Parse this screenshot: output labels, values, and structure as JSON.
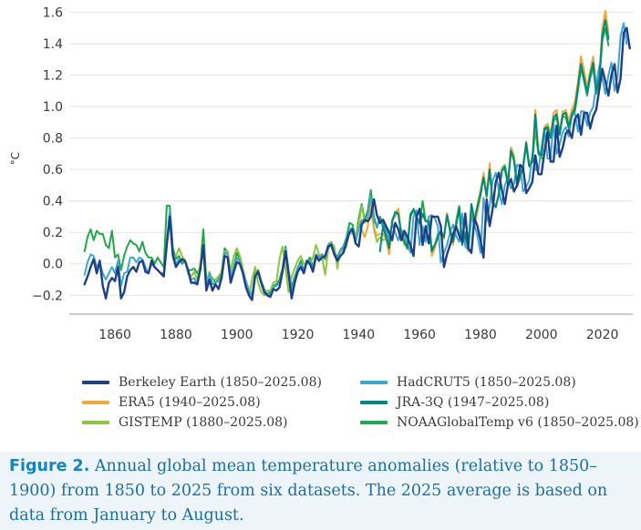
{
  "chart_data": {
    "type": "line",
    "title": "",
    "xlabel": "",
    "ylabel": "°C",
    "xlim": [
      1845,
      2030
    ],
    "ylim": [
      -0.32,
      1.62
    ],
    "xticks": [
      1860,
      1880,
      1900,
      1920,
      1940,
      1960,
      1980,
      2000,
      2020
    ],
    "xtick_labels": [
      "1860",
      "1880",
      "1900",
      "1920",
      "1940",
      "1960",
      "1980",
      "2000",
      "2020"
    ],
    "yticks": [
      -0.2,
      0.0,
      0.2,
      0.4,
      0.6,
      0.8,
      1.0,
      1.2,
      1.4,
      1.6
    ],
    "ytick_labels": [
      "−0.2",
      "0.0",
      "0.2",
      "0.4",
      "0.6",
      "0.8",
      "1.0",
      "1.2",
      "1.4",
      "1.6"
    ],
    "grid": "horizontal",
    "x_start": 1850,
    "series": [
      {
        "name": "Berkeley Earth (1850–2025.08)",
        "color": "#1f3f86",
        "start": 1850,
        "values": [
          -0.13,
          -0.08,
          -0.02,
          0.03,
          -0.06,
          0.02,
          -0.14,
          -0.22,
          -0.12,
          -0.09,
          -0.11,
          -0.02,
          -0.22,
          -0.18,
          -0.08,
          -0.04,
          -0.02,
          -0.05,
          0.01,
          0.02,
          -0.05,
          -0.06,
          0.02,
          -0.02,
          -0.04,
          -0.06,
          -0.08,
          0.12,
          0.3,
          0.05,
          -0.02,
          0.01,
          0.03,
          0.02,
          -0.04,
          -0.12,
          -0.12,
          -0.13,
          -0.04,
          0.12,
          -0.17,
          -0.1,
          -0.17,
          -0.13,
          -0.16,
          -0.09,
          0.05,
          0.04,
          -0.12,
          -0.05,
          0.01,
          0.0,
          -0.06,
          -0.15,
          -0.2,
          -0.23,
          -0.08,
          -0.05,
          -0.12,
          -0.18,
          -0.2,
          -0.21,
          -0.16,
          -0.17,
          -0.15,
          -0.05,
          0.08,
          -0.07,
          -0.22,
          -0.12,
          -0.05,
          -0.02,
          -0.06,
          0.02,
          0.0,
          -0.05,
          0.05,
          0.02,
          0.04,
          0.05,
          0.11,
          0.12,
          0.06,
          0.02,
          0.05,
          0.07,
          0.14,
          0.2,
          0.22,
          0.13,
          0.11,
          0.25,
          0.28,
          0.27,
          0.3,
          0.41,
          0.31,
          0.26,
          0.28,
          0.24,
          0.2,
          0.15,
          0.26,
          0.22,
          0.15,
          0.21,
          0.17,
          0.12,
          0.05,
          0.3,
          0.35,
          0.12,
          0.24,
          0.13,
          0.3,
          0.3,
          0.3,
          0.24,
          -0.02,
          0.06,
          0.12,
          0.19,
          0.24,
          0.18,
          0.14,
          0.32,
          0.1,
          0.07,
          0.29,
          0.24,
          0.15,
          0.04,
          0.41,
          0.24,
          0.35,
          0.52,
          0.58,
          0.47,
          0.38,
          0.5,
          0.54,
          0.46,
          0.5,
          0.63,
          0.61,
          0.45,
          0.48,
          0.52,
          0.69,
          0.57,
          0.57,
          0.71,
          0.84,
          0.65,
          0.65,
          0.88,
          0.68,
          0.74,
          0.83,
          0.85,
          0.8,
          0.92,
          0.95,
          0.82,
          0.96,
          0.96,
          0.86,
          0.94,
          0.98,
          1.11,
          1.24,
          1.16,
          1.07,
          1.2,
          1.27,
          1.09,
          1.18,
          1.47,
          1.5,
          1.37
        ]
      },
      {
        "name": "ERA5 (1940–2025.08)",
        "color": "#f2a93b",
        "start": 1940,
        "values": [
          0.28,
          0.22,
          0.17,
          0.24,
          0.39,
          0.23,
          0.18,
          0.19,
          0.19,
          0.16,
          0.06,
          0.27,
          0.32,
          0.35,
          0.19,
          0.15,
          0.09,
          0.32,
          0.34,
          0.3,
          0.27,
          0.31,
          0.28,
          0.28,
          0.05,
          0.1,
          0.17,
          0.2,
          0.16,
          0.32,
          0.2,
          0.12,
          0.24,
          0.35,
          0.13,
          0.17,
          0.08,
          0.36,
          0.24,
          0.33,
          0.43,
          0.58,
          0.42,
          0.64,
          0.4,
          0.37,
          0.45,
          0.6,
          0.62,
          0.52,
          0.74,
          0.67,
          0.51,
          0.55,
          0.63,
          0.78,
          0.64,
          0.67,
          0.98,
          0.72,
          0.71,
          0.87,
          0.88,
          0.82,
          0.96,
          0.98,
          0.83,
          0.96,
          0.98,
          0.91,
          0.98,
          1.03,
          1.16,
          1.32,
          1.23,
          1.12,
          1.23,
          1.32,
          1.12,
          1.2,
          1.5,
          1.61,
          1.47
        ]
      },
      {
        "name": "GISTEMP (1880–2025.08)",
        "color": "#8cc63f",
        "start": 1880,
        "values": [
          0.05,
          0.1,
          0.05,
          0.02,
          -0.05,
          -0.08,
          -0.05,
          -0.1,
          0.0,
          0.13,
          -0.13,
          -0.05,
          -0.1,
          -0.1,
          -0.08,
          -0.05,
          0.08,
          0.08,
          -0.05,
          0.05,
          0.1,
          0.05,
          -0.03,
          -0.12,
          -0.2,
          -0.1,
          -0.02,
          -0.12,
          -0.18,
          -0.2,
          -0.17,
          -0.17,
          -0.12,
          -0.11,
          0.03,
          0.11,
          -0.03,
          -0.18,
          -0.08,
          -0.03,
          0.02,
          0.05,
          0.0,
          0.0,
          0.0,
          0.04,
          0.12,
          0.06,
          0.04,
          -0.07,
          0.09,
          0.14,
          0.11,
          -0.03,
          0.09,
          0.07,
          0.11,
          0.2,
          0.19,
          0.18,
          0.25,
          0.37,
          0.26,
          0.29,
          0.36,
          0.22,
          0.14,
          0.17,
          0.15,
          0.16,
          0.09,
          0.28,
          0.32,
          0.35,
          0.19,
          0.12,
          0.11,
          0.32,
          0.34,
          0.29,
          0.25,
          0.31,
          0.27,
          0.28,
          0.09,
          0.12,
          0.18,
          0.21,
          0.17,
          0.3,
          0.22,
          0.14,
          0.25,
          0.37,
          0.13,
          0.19,
          0.08,
          0.38,
          0.28,
          0.38,
          0.47,
          0.57,
          0.43,
          0.6,
          0.38,
          0.36,
          0.45,
          0.61,
          0.63,
          0.53,
          0.74,
          0.69,
          0.51,
          0.56,
          0.62,
          0.77,
          0.64,
          0.67,
          0.89,
          0.72,
          0.68,
          0.87,
          0.89,
          0.83,
          0.93,
          0.96,
          0.84,
          0.97,
          0.95,
          0.88,
          0.98,
          1.01,
          1.12,
          1.29,
          1.2,
          1.1,
          1.21,
          1.29,
          1.1,
          1.18,
          1.47,
          1.57,
          1.45
        ]
      },
      {
        "name": "HadCRUT5 (1850–2025.08)",
        "color": "#3aa7d4",
        "start": 1850,
        "values": [
          -0.07,
          0.01,
          0.06,
          0.05,
          -0.02,
          0.01,
          -0.06,
          -0.1,
          -0.06,
          -0.02,
          -0.06,
          0.02,
          -0.14,
          -0.06,
          -0.05,
          0.04,
          0.04,
          0.01,
          0.04,
          0.03,
          -0.02,
          -0.06,
          0.0,
          -0.02,
          -0.04,
          -0.06,
          -0.06,
          0.14,
          0.34,
          0.06,
          0.0,
          0.03,
          0.02,
          0.02,
          -0.06,
          -0.1,
          -0.09,
          -0.13,
          -0.04,
          0.1,
          -0.15,
          -0.06,
          -0.13,
          -0.12,
          -0.11,
          -0.08,
          0.07,
          0.06,
          -0.08,
          -0.03,
          0.04,
          0.01,
          -0.05,
          -0.11,
          -0.17,
          -0.2,
          -0.07,
          -0.05,
          -0.12,
          -0.16,
          -0.2,
          -0.19,
          -0.15,
          -0.14,
          -0.12,
          -0.04,
          0.1,
          -0.04,
          -0.18,
          -0.1,
          -0.02,
          0.0,
          -0.04,
          0.02,
          0.02,
          -0.03,
          0.06,
          0.04,
          0.05,
          0.05,
          0.12,
          0.13,
          0.07,
          0.02,
          0.08,
          0.1,
          0.16,
          0.22,
          0.23,
          0.14,
          0.22,
          0.28,
          0.27,
          0.31,
          0.43,
          0.27,
          0.24,
          0.28,
          0.23,
          0.22,
          0.15,
          0.26,
          0.2,
          0.15,
          0.22,
          0.18,
          0.13,
          0.07,
          0.3,
          0.34,
          0.12,
          0.24,
          0.14,
          0.3,
          0.31,
          0.29,
          0.24,
          0.01,
          0.07,
          0.12,
          0.2,
          0.25,
          0.18,
          0.14,
          0.32,
          0.11,
          0.09,
          0.3,
          0.25,
          0.18,
          0.07,
          0.42,
          0.27,
          0.37,
          0.53,
          0.58,
          0.47,
          0.38,
          0.5,
          0.55,
          0.48,
          0.51,
          0.63,
          0.62,
          0.46,
          0.49,
          0.53,
          0.7,
          0.6,
          0.59,
          0.74,
          0.86,
          0.67,
          0.67,
          0.9,
          0.7,
          0.76,
          0.84,
          0.87,
          0.81,
          0.94,
          0.96,
          0.84,
          0.97,
          0.97,
          0.88,
          0.96,
          1.0,
          1.14,
          1.26,
          1.18,
          1.08,
          1.2,
          1.28,
          1.1,
          1.19,
          1.45,
          1.53,
          1.4
        ]
      },
      {
        "name": "JRA-3Q (1947–2025.08)",
        "color": "#00897b",
        "start": 1947,
        "values": [
          0.08,
          0.24,
          0.17,
          0.1,
          0.27,
          0.33,
          0.32,
          0.18,
          0.14,
          0.1,
          0.31,
          0.35,
          0.3,
          0.26,
          0.32,
          0.27,
          0.27,
          0.08,
          0.12,
          0.17,
          0.21,
          0.17,
          0.31,
          0.21,
          0.14,
          0.24,
          0.36,
          0.12,
          0.19,
          0.1,
          0.38,
          0.27,
          0.36,
          0.44,
          0.55,
          0.43,
          0.6,
          0.39,
          0.36,
          0.44,
          0.59,
          0.62,
          0.5,
          0.72,
          0.66,
          0.5,
          0.56,
          0.62,
          0.77,
          0.62,
          0.65,
          0.95,
          0.71,
          0.69,
          0.86,
          0.87,
          0.8,
          0.93,
          0.95,
          0.82,
          0.95,
          0.96,
          0.87,
          0.95,
          0.99,
          1.13,
          1.27,
          1.18,
          1.09,
          1.2,
          1.28,
          1.1,
          1.18,
          1.46,
          1.55,
          1.43
        ]
      },
      {
        "name": "NOAAGlobalTemp v6 (1850–2025.08)",
        "color": "#1fa84a",
        "start": 1850,
        "values": [
          0.08,
          0.17,
          0.22,
          0.15,
          0.21,
          0.19,
          0.19,
          0.12,
          0.1,
          0.21,
          0.04,
          0.06,
          -0.04,
          0.05,
          0.11,
          0.15,
          0.13,
          0.12,
          0.08,
          0.14,
          0.07,
          0.04,
          0.04,
          0.0,
          0.04,
          0.01,
          -0.02,
          0.37,
          0.37,
          0.1,
          0.03,
          0.05,
          0.0,
          0.02,
          -0.04,
          -0.04,
          -0.03,
          -0.06,
          -0.02,
          0.22,
          -0.1,
          -0.07,
          -0.09,
          -0.12,
          -0.1,
          -0.05,
          0.1,
          0.07,
          -0.1,
          -0.02,
          0.07,
          0.03,
          -0.04,
          -0.14,
          -0.18,
          -0.2,
          -0.06,
          -0.04,
          -0.11,
          -0.16,
          -0.19,
          -0.18,
          -0.14,
          -0.13,
          -0.1,
          -0.03,
          0.11,
          -0.04,
          -0.15,
          -0.08,
          -0.03,
          0.02,
          -0.04,
          0.01,
          0.04,
          -0.02,
          0.06,
          0.05,
          0.06,
          0.03,
          0.12,
          0.14,
          0.08,
          0.04,
          0.09,
          0.11,
          0.17,
          0.26,
          0.25,
          0.15,
          0.29,
          0.38,
          0.28,
          0.34,
          0.47,
          0.3,
          0.23,
          0.3,
          0.26,
          0.21,
          0.14,
          0.27,
          0.31,
          0.33,
          0.2,
          0.16,
          0.11,
          0.3,
          0.34,
          0.29,
          0.26,
          0.4,
          0.27,
          0.28,
          0.1,
          0.12,
          0.19,
          0.2,
          0.16,
          0.32,
          0.22,
          0.15,
          0.27,
          0.37,
          0.13,
          0.2,
          0.09,
          0.38,
          0.28,
          0.37,
          0.46,
          0.56,
          0.44,
          0.59,
          0.38,
          0.36,
          0.45,
          0.6,
          0.6,
          0.51,
          0.72,
          0.66,
          0.49,
          0.55,
          0.61,
          0.75,
          0.62,
          0.65,
          0.86,
          0.7,
          0.67,
          0.85,
          0.86,
          0.8,
          0.91,
          0.93,
          0.83,
          0.94,
          0.93,
          0.86,
          0.94,
          0.97,
          1.1,
          1.25,
          1.16,
          1.07,
          1.18,
          1.25,
          1.08,
          1.16,
          1.42,
          1.5,
          1.39
        ]
      }
    ]
  },
  "legend": {
    "items": [
      {
        "label": "Berkeley Earth (1850–2025.08)",
        "color": "#1f3f86"
      },
      {
        "label": "HadCRUT5 (1850–2025.08)",
        "color": "#3aa7d4"
      },
      {
        "label": "ERA5 (1940–2025.08)",
        "color": "#f2a93b"
      },
      {
        "label": "JRA-3Q (1947–2025.08)",
        "color": "#00897b"
      },
      {
        "label": "GISTEMP (1880–2025.08)",
        "color": "#8cc63f"
      },
      {
        "label": "NOAAGlobalTemp v6 (1850–2025.08)",
        "color": "#1fa84a"
      }
    ]
  },
  "caption": {
    "label": "Figure 2.",
    "text": " Annual global mean temperature anomalies (relative to 1850–1900) from 1850 to 2025 from six datasets. The 2025 average is based on data from January to August."
  }
}
